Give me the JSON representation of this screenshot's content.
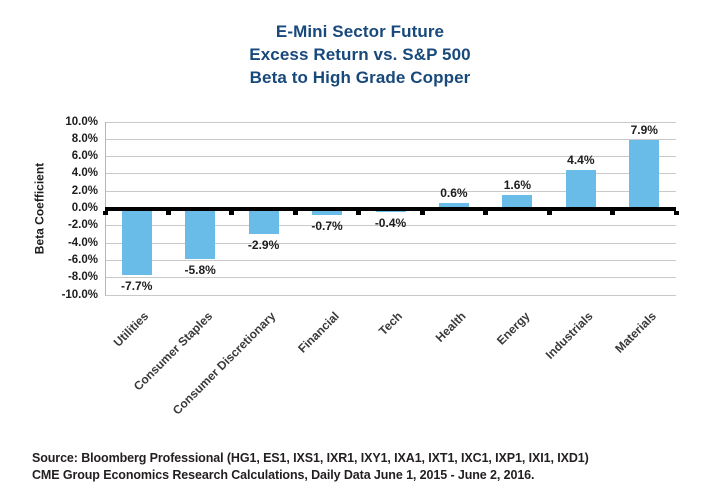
{
  "title": {
    "line1": "E-Mini Sector Future",
    "line2": "Excess Return vs. S&P 500",
    "line3": "Beta to High Grade Copper"
  },
  "chart_data": {
    "type": "bar",
    "title": "E-Mini Sector Future Excess Return vs. S&P 500 Beta to High Grade Copper",
    "categories": [
      "Utilities",
      "Consumer Staples",
      "Consumer Discretionary",
      "Financial",
      "Tech",
      "Health",
      "Energy",
      "Industrials",
      "Materials"
    ],
    "values": [
      -7.7,
      -5.8,
      -2.9,
      -0.7,
      -0.4,
      0.6,
      1.6,
      4.4,
      7.9
    ],
    "value_labels": [
      "-7.7%",
      "-5.8%",
      "-2.9%",
      "-0.7%",
      "-0.4%",
      "0.6%",
      "1.6%",
      "4.4%",
      "7.9%"
    ],
    "xlabel": "",
    "ylabel": "Beta Coefficient",
    "ylim": [
      -10,
      10
    ],
    "ytick_step": 2,
    "ytick_labels": [
      "10.0%",
      "8.0%",
      "6.0%",
      "4.0%",
      "2.0%",
      "0.0%",
      "-2.0%",
      "-4.0%",
      "-6.0%",
      "-8.0%",
      "-10.0%"
    ],
    "grid": true,
    "legend_position": "none",
    "bar_color": "#69BCE7",
    "zero_line_color": "#000000",
    "grid_color": "#c9c9c9"
  },
  "footer": {
    "line1": "Source: Bloomberg Professional (HG1, ES1, IXS1, IXR1, IXY1, IXA1, IXT1, IXC1, IXP1, IXI1, IXD1)",
    "line2": "CME Group Economics Research Calculations, Daily Data June 1, 2015 - June 2, 2016."
  },
  "colors": {
    "title_blue": "#17497B",
    "bar_blue": "#69BCE7",
    "text_dark": "#231F20"
  }
}
